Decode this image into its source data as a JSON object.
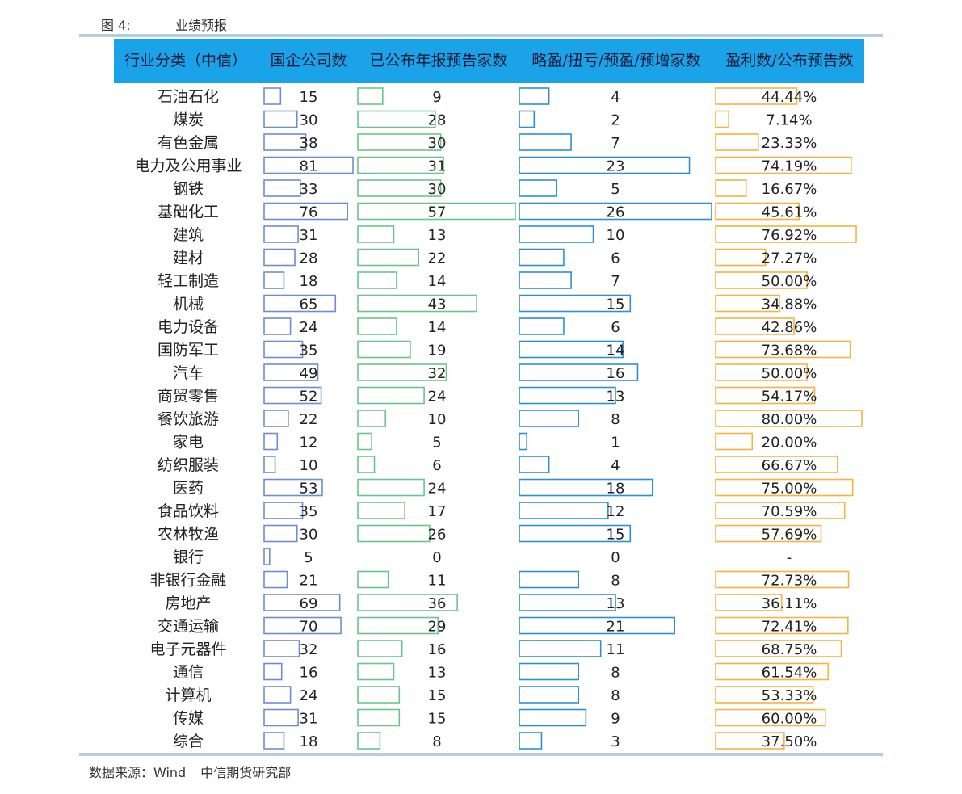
{
  "figure": {
    "number": "图 4:",
    "title": "业绩预报"
  },
  "chart_data": {
    "type": "table",
    "columns": [
      "行业分类（中信）",
      "国企公司数",
      "已公布年报预告家数",
      "略盈/扭亏/预盈/预增家数",
      "盈利数/公布预告数"
    ],
    "rows": [
      [
        "石油石化",
        15,
        9,
        4,
        "44.44%"
      ],
      [
        "煤炭",
        30,
        28,
        2,
        "7.14%"
      ],
      [
        "有色金属",
        38,
        30,
        7,
        "23.33%"
      ],
      [
        "电力及公用事业",
        81,
        31,
        23,
        "74.19%"
      ],
      [
        "钢铁",
        33,
        30,
        5,
        "16.67%"
      ],
      [
        "基础化工",
        76,
        57,
        26,
        "45.61%"
      ],
      [
        "建筑",
        31,
        13,
        10,
        "76.92%"
      ],
      [
        "建材",
        28,
        22,
        6,
        "27.27%"
      ],
      [
        "轻工制造",
        18,
        14,
        7,
        "50.00%"
      ],
      [
        "机械",
        65,
        43,
        15,
        "34.88%"
      ],
      [
        "电力设备",
        24,
        14,
        6,
        "42.86%"
      ],
      [
        "国防军工",
        35,
        19,
        14,
        "73.68%"
      ],
      [
        "汽车",
        49,
        32,
        16,
        "50.00%"
      ],
      [
        "商贸零售",
        52,
        24,
        13,
        "54.17%"
      ],
      [
        "餐饮旅游",
        22,
        10,
        8,
        "80.00%"
      ],
      [
        "家电",
        12,
        5,
        1,
        "20.00%"
      ],
      [
        "纺织服装",
        10,
        6,
        4,
        "66.67%"
      ],
      [
        "医药",
        53,
        24,
        18,
        "75.00%"
      ],
      [
        "食品饮料",
        35,
        17,
        12,
        "70.59%"
      ],
      [
        "农林牧渔",
        30,
        26,
        15,
        "57.69%"
      ],
      [
        "银行",
        5,
        0,
        0,
        "-"
      ],
      [
        "非银行金融",
        21,
        11,
        8,
        "72.73%"
      ],
      [
        "房地产",
        69,
        36,
        13,
        "36.11%"
      ],
      [
        "交通运输",
        70,
        29,
        21,
        "72.41%"
      ],
      [
        "电子元器件",
        32,
        16,
        11,
        "68.75%"
      ],
      [
        "通信",
        16,
        13,
        8,
        "61.54%"
      ],
      [
        "计算机",
        24,
        15,
        8,
        "53.33%"
      ],
      [
        "传媒",
        31,
        15,
        9,
        "60.00%"
      ],
      [
        "综合",
        18,
        8,
        3,
        "37.50%"
      ]
    ],
    "bar_colors": [
      "#6f8ccf",
      "#6cc48c",
      "#2e8fd6",
      "#f5b342"
    ]
  },
  "source": {
    "label": "数据来源：Wind",
    "org": "中信期货研究部"
  },
  "colors": {
    "header_bg": "#1aa3e8",
    "rule": "#b8cce0"
  }
}
